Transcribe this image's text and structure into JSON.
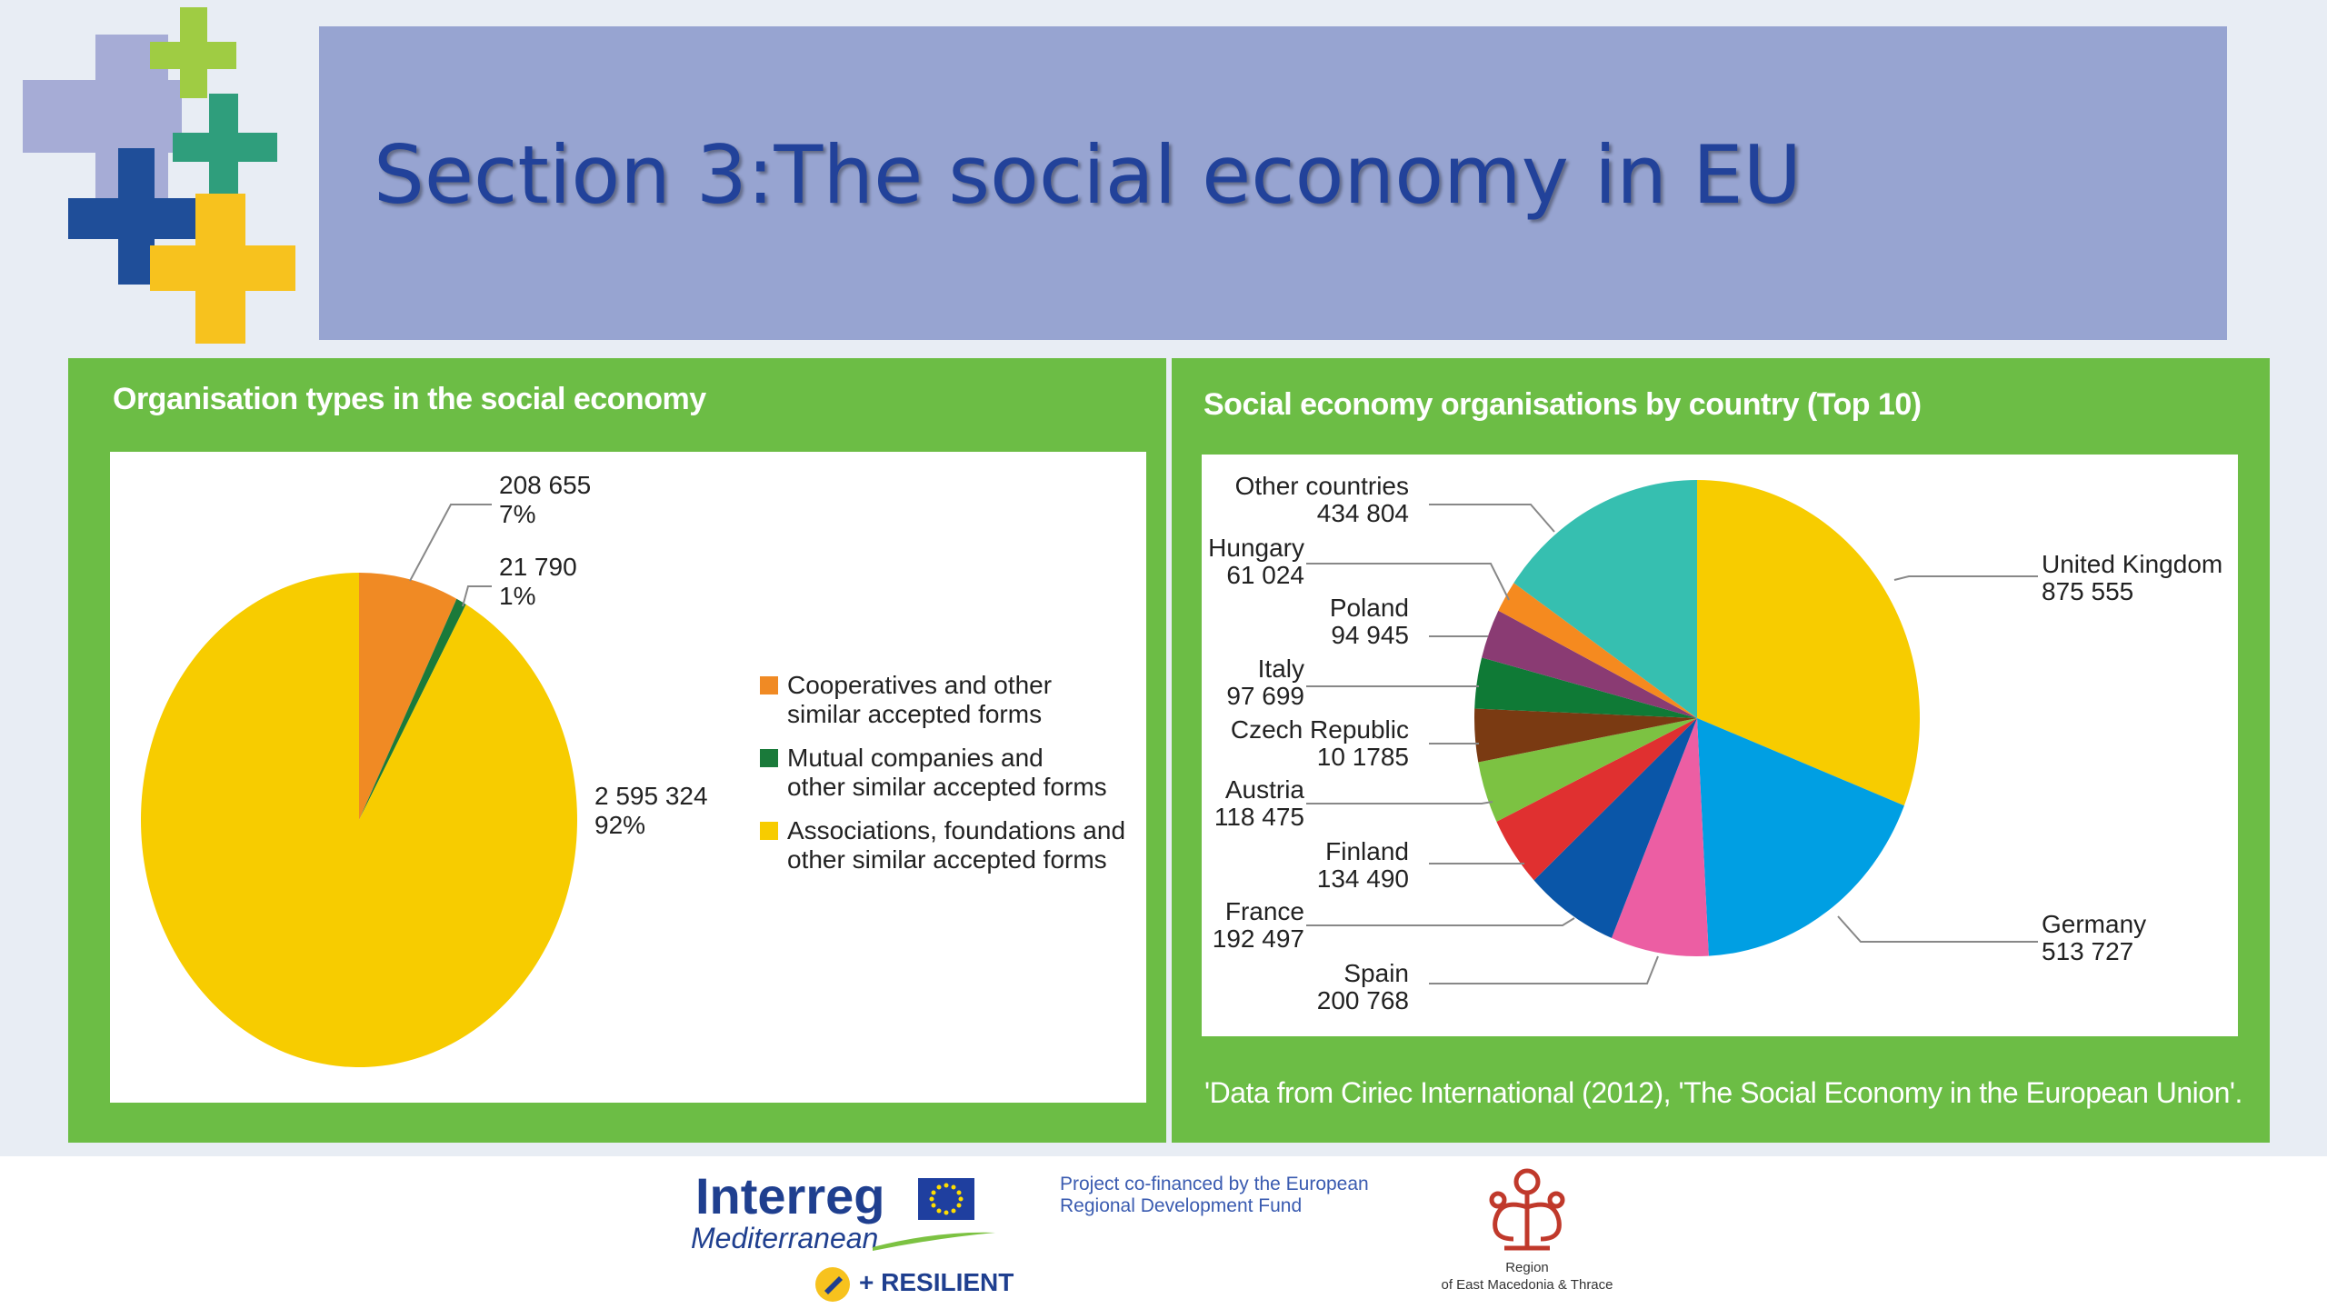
{
  "page": {
    "title": "Section 3:The social economy in EU"
  },
  "footer": {
    "interreg": "Interreg",
    "mediterranean": "Mediterranean",
    "resilient": "+ RESILIENT",
    "cofinance_line1": "Project co-financed by the European",
    "cofinance_line2": "Regional Development Fund",
    "region_line1": "Region",
    "region_line2": "of East Macedonia & Thrace"
  },
  "colors": {
    "panel_green": "#6cbd45",
    "banner": "#97a4d1",
    "title_blue": "#22429a"
  },
  "chart_data": [
    {
      "type": "pie",
      "title": "Organisation types in the social economy",
      "slices": [
        {
          "label": "Cooperatives and other similar accepted forms",
          "value": 208655,
          "percent": "7%",
          "value_label": "208 655",
          "color": "#f08a24"
        },
        {
          "label": "Mutual companies and other similar accepted forms",
          "value": 21790,
          "percent": "1%",
          "value_label": "21 790",
          "color": "#1a7a3a"
        },
        {
          "label": "Associations, foundations and other similar accepted forms",
          "value": 2595324,
          "percent": "92%",
          "value_label": "2 595 324",
          "color": "#f7cc00"
        }
      ],
      "legend": [
        {
          "line1": "Cooperatives and other",
          "line2": "similar accepted forms",
          "color": "#f08a24"
        },
        {
          "line1": "Mutual companies and",
          "line2": "other similar accepted forms",
          "color": "#1a7a3a"
        },
        {
          "line1": "Associations, foundations and",
          "line2": "other similar accepted forms",
          "color": "#f7cc00"
        }
      ],
      "legend_position": "right"
    },
    {
      "type": "pie",
      "title": "Social economy organisations by country (Top 10)",
      "slices": [
        {
          "label": "United Kingdom",
          "value": 875555,
          "value_label": "875 555",
          "color": "#f7cc00"
        },
        {
          "label": "Germany",
          "value": 513727,
          "value_label": "513 727",
          "color": "#009fe3"
        },
        {
          "label": "Spain",
          "value": 200768,
          "value_label": "200 768",
          "color": "#ec5ea3"
        },
        {
          "label": "France",
          "value": 192497,
          "value_label": "192 497",
          "color": "#0a56a8"
        },
        {
          "label": "Finland",
          "value": 134490,
          "value_label": "134 490",
          "color": "#e03030"
        },
        {
          "label": "Austria",
          "value": 118475,
          "value_label": "118 475",
          "color": "#7cc242"
        },
        {
          "label": "Czech Republic",
          "value": 101785,
          "value_label": "10 1785",
          "color": "#7a3a12"
        },
        {
          "label": "Italy",
          "value": 97699,
          "value_label": "97 699",
          "color": "#0f7a36"
        },
        {
          "label": "Poland",
          "value": 94945,
          "value_label": "94 945",
          "color": "#8a3b73"
        },
        {
          "label": "Hungary",
          "value": 61024,
          "value_label": "61 024",
          "color": "#f58a1f"
        },
        {
          "label": "Other countries",
          "value": 434804,
          "value_label": "434 804",
          "color": "#36bfb0"
        }
      ],
      "source_note": "'Data from Ciriec International (2012), 'The Social Economy in the European Union'."
    }
  ]
}
